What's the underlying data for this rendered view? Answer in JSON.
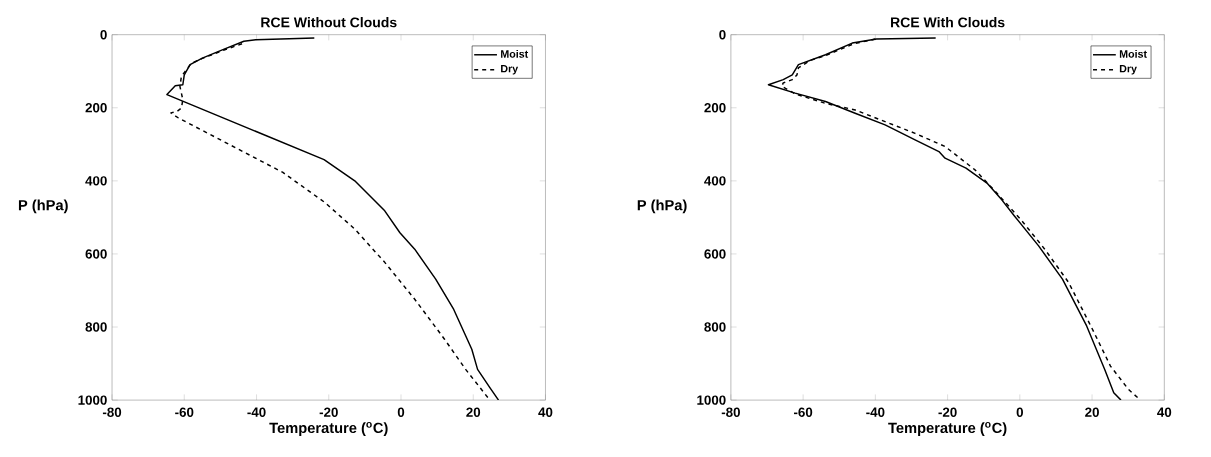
{
  "chart_data": [
    {
      "type": "line",
      "title": "RCE Without Clouds",
      "xlabel": "Temperature ($^{o}$C)",
      "ylabel": "P (hPa)",
      "xlim": [
        -80,
        40
      ],
      "ylim": [
        1000,
        0
      ],
      "xticks": [
        -80,
        -60,
        -40,
        -20,
        0,
        20,
        40
      ],
      "yticks": [
        0,
        200,
        400,
        600,
        800,
        1000
      ],
      "legend": "top right",
      "grid": false,
      "series": [
        {
          "name": "Moist",
          "color": "#000000",
          "line_style": "solid",
          "x": [
            -24,
            -40.2,
            -43.5,
            -49.3,
            -55,
            -58.4,
            -60,
            -60.4,
            -62.5,
            -64.8,
            -21.3,
            -12.8,
            -4.5,
            -0.3,
            3.8,
            9.6,
            14.6,
            19.6,
            21.2,
            24.6,
            27
          ],
          "values": [
            9,
            14,
            18,
            41,
            64,
            82,
            110,
            137,
            140,
            164,
            342,
            400,
            482,
            542,
            587,
            669,
            752,
            861,
            916,
            966,
            1000
          ]
        },
        {
          "name": "Dry",
          "color": "#000000",
          "line_style": "dashed",
          "x": [
            -44,
            -49,
            -55,
            -58,
            -60.8,
            -61.2,
            -60.4,
            -60.8,
            -62,
            -63.7,
            -61.6,
            -32.7,
            -21.1,
            -12.8,
            -4.5,
            3.8,
            12.1,
            17.9,
            24.6
          ],
          "values": [
            25,
            42,
            65,
            78,
            114,
            142,
            178,
            201,
            210,
            214,
            228,
            377,
            459,
            532,
            623,
            724,
            834,
            916,
            1000
          ]
        }
      ]
    },
    {
      "type": "line",
      "title": "RCE With Clouds",
      "xlabel": "Temperature ($^{o}$C)",
      "ylabel": "P (hPa)",
      "xlim": [
        -80,
        40
      ],
      "ylim": [
        1000,
        0
      ],
      "xticks": [
        -80,
        -60,
        -40,
        -20,
        0,
        20,
        40
      ],
      "yticks": [
        0,
        200,
        400,
        600,
        800,
        1000
      ],
      "legend": "top right",
      "grid": false,
      "series": [
        {
          "name": "Moist",
          "color": "#000000",
          "line_style": "solid",
          "x": [
            -23.3,
            -39.7,
            -46.4,
            -53.8,
            -58.8,
            -61.3,
            -63,
            -65.5,
            -69.6,
            -62.2,
            -53.8,
            -45.6,
            -37.3,
            -29,
            -22.4,
            -20.7,
            -14.9,
            -9.1,
            -5,
            -1.5,
            5.2,
            11.8,
            18.5,
            23.5,
            26,
            28
          ],
          "values": [
            9,
            12,
            23,
            55,
            73,
            82,
            110,
            123,
            137,
            160,
            183,
            215,
            247,
            288,
            320,
            338,
            365,
            406,
            452,
            496,
            578,
            669,
            797,
            916,
            980,
            1000
          ]
        },
        {
          "name": "Dry",
          "color": "#000000",
          "line_style": "dashed",
          "x": [
            -40,
            -46,
            -54,
            -58,
            -61.3,
            -61.7,
            -63,
            -65.5,
            -65.9,
            -62.2,
            -53.8,
            -45.6,
            -37.3,
            -29,
            -20.7,
            -12.4,
            -6.5,
            0.2,
            6.9,
            13.5,
            20.1,
            25.1,
            30.1,
            33.4
          ],
          "values": [
            12,
            25,
            58,
            70,
            91,
            110,
            123,
            132,
            141,
            162,
            188,
            206,
            238,
            270,
            306,
            370,
            432,
            505,
            587,
            678,
            806,
            907,
            971,
            1000
          ]
        }
      ]
    }
  ]
}
